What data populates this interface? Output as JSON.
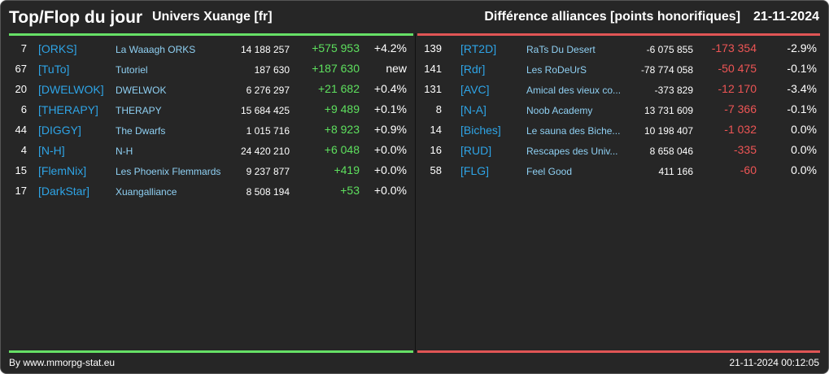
{
  "header": {
    "title": "Top/Flop du jour",
    "universe": "Univers Xuange [fr]",
    "category": "Différence alliances [points honorifiques]",
    "date": "21-11-2024"
  },
  "colors": {
    "top": "#66e066",
    "flop": "#e05555",
    "tag": "#2ea4e6",
    "name": "#8fd0f3"
  },
  "top": [
    {
      "rank": "7",
      "tag": "[ORKS]",
      "name": "La Waaagh ORKS",
      "points": "14 188 257",
      "diff": "+575 953",
      "pct": "+4.2%"
    },
    {
      "rank": "67",
      "tag": "[TuTo]",
      "name": "Tutoriel",
      "points": "187 630",
      "diff": "+187 630",
      "pct": "new"
    },
    {
      "rank": "20",
      "tag": "[DWELWOK]",
      "name": "DWELWOK",
      "points": "6 276 297",
      "diff": "+21 682",
      "pct": "+0.4%"
    },
    {
      "rank": "6",
      "tag": "[THERAPY]",
      "name": "THERAPY",
      "points": "15 684 425",
      "diff": "+9 489",
      "pct": "+0.1%"
    },
    {
      "rank": "44",
      "tag": "[DIGGY]",
      "name": "The Dwarfs",
      "points": "1 015 716",
      "diff": "+8 923",
      "pct": "+0.9%"
    },
    {
      "rank": "4",
      "tag": "[N-H]",
      "name": "N-H",
      "points": "24 420 210",
      "diff": "+6 048",
      "pct": "+0.0%"
    },
    {
      "rank": "15",
      "tag": "[FlemNix]",
      "name": "Les Phoenix Flemmards",
      "points": "9 237 877",
      "diff": "+419",
      "pct": "+0.0%"
    },
    {
      "rank": "17",
      "tag": "[DarkStar]",
      "name": "Xuangalliance",
      "points": "8 508 194",
      "diff": "+53",
      "pct": "+0.0%"
    }
  ],
  "flop": [
    {
      "rank": "139",
      "tag": "[RT2D]",
      "name": "RaTs Du Desert",
      "points": "-6 075 855",
      "diff": "-173 354",
      "pct": "-2.9%"
    },
    {
      "rank": "141",
      "tag": "[Rdr]",
      "name": "Les RoDeUrS",
      "points": "-78 774 058",
      "diff": "-50 475",
      "pct": "-0.1%"
    },
    {
      "rank": "131",
      "tag": "[AVC]",
      "name": "Amical des vieux co...",
      "points": "-373 829",
      "diff": "-12 170",
      "pct": "-3.4%"
    },
    {
      "rank": "8",
      "tag": "[N-A]",
      "name": "Noob Academy",
      "points": "13 731 609",
      "diff": "-7 366",
      "pct": "-0.1%"
    },
    {
      "rank": "14",
      "tag": "[Biches]",
      "name": "Le sauna des Biche...",
      "points": "10 198 407",
      "diff": "-1 032",
      "pct": "0.0%"
    },
    {
      "rank": "16",
      "tag": "[RUD]",
      "name": "Rescapes des Univ...",
      "points": "8 658 046",
      "diff": "-335",
      "pct": "0.0%"
    },
    {
      "rank": "58",
      "tag": "[FLG]",
      "name": "Feel Good",
      "points": "411 166",
      "diff": "-60",
      "pct": "0.0%"
    }
  ],
  "footer": {
    "credit": "By www.mmorpg-stat.eu",
    "timestamp": "21-11-2024 00:12:05"
  }
}
